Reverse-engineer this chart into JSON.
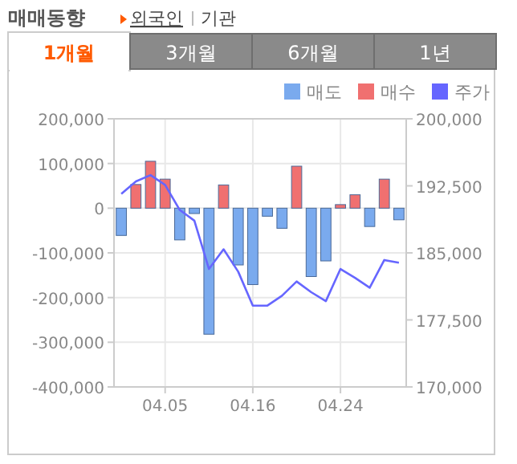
{
  "chart_data": {
    "type": "bar",
    "title": "매매동향",
    "annotations": [
      "외국인",
      "기관",
      "1개월",
      "3개월",
      "6개월",
      "1년"
    ],
    "categories": [
      null,
      null,
      null,
      "04.05",
      null,
      null,
      null,
      null,
      null,
      "04.16",
      null,
      null,
      null,
      null,
      null,
      "04.24",
      null,
      null,
      null,
      null
    ],
    "series": [
      {
        "name": "매도",
        "color": "#7aaaee",
        "values": [
          -61000,
          0,
          0,
          0,
          -71000,
          -12000,
          -282000,
          0,
          -127000,
          -171000,
          -18000,
          -45000,
          0,
          -153000,
          -118000,
          0,
          0,
          -41000,
          0,
          -26000
        ]
      },
      {
        "name": "매수",
        "color": "#f07070",
        "values": [
          0,
          53000,
          105000,
          65000,
          0,
          0,
          0,
          52000,
          0,
          0,
          0,
          0,
          94000,
          0,
          0,
          8000,
          30000,
          0,
          65000,
          0
        ]
      },
      {
        "name": "주가",
        "type": "line",
        "axis": "y2",
        "color": "#6666ff",
        "values": [
          191600,
          193000,
          193700,
          192600,
          189800,
          188600,
          183200,
          185400,
          182900,
          179100,
          179100,
          180200,
          181800,
          180600,
          179600,
          183200,
          182200,
          181100,
          184200,
          183900
        ]
      }
    ],
    "ylim": [
      -400000,
      200000
    ],
    "yticks": [
      {
        "value": -400000,
        "label": "-400,000"
      },
      {
        "value": -300000,
        "label": "-300,000"
      },
      {
        "value": -200000,
        "label": "-200,000"
      },
      {
        "value": -100000,
        "label": "-100,000"
      },
      0,
      {
        "value": 100000,
        "label": "100,000"
      },
      {
        "value": 200000,
        "label": "200,000"
      }
    ],
    "y2lim": [
      170000,
      200000
    ],
    "y2ticks": [
      {
        "value": 170000,
        "label": "170,000"
      },
      {
        "value": 177500,
        "label": "177,500"
      },
      {
        "value": 185000,
        "label": "185,000"
      },
      {
        "value": 192500,
        "label": "192,500"
      },
      {
        "value": 200000,
        "label": "200,000"
      }
    ],
    "grid": true,
    "legend": "top right"
  }
}
